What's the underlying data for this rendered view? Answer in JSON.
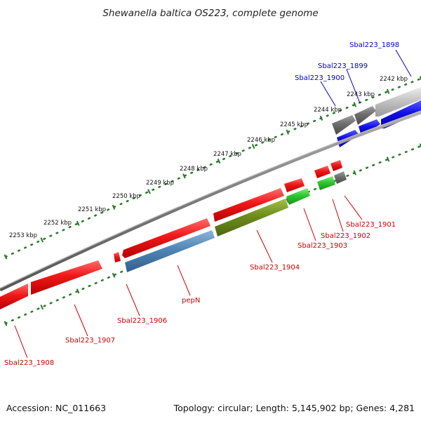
{
  "title": "Shewanella baltica OS223, complete genome",
  "footer": {
    "accession": "Accession: NC_011663",
    "topology": "Topology: circular; Length: 5,145,902 bp; Genes: 4,281"
  },
  "colors": {
    "red_gene": "#e8141b",
    "blue_gene": "#1414e0",
    "steel_gene": "#4f86b8",
    "olive_gene": "#6f8d1c",
    "green_gene": "#2ec82e",
    "dark_gene": "#707070",
    "light_gene": "#c4c4c4",
    "tick": "#2a7a2a",
    "label_red": "#cc0000",
    "label_blue": "#0000cc"
  },
  "scale_labels": [
    "2242 kbp",
    "2243 kbp",
    "2244 kbp",
    "2245 kbp",
    "2246 kbp",
    "2247 kbp",
    "2248 kbp",
    "2249 kbp",
    "2250 kbp",
    "2251 kbp",
    "2252 kbp",
    "2253 kbp"
  ],
  "genes": [
    {
      "label": "Sbal223_1898",
      "strand": "plus"
    },
    {
      "label": "Sbal223_1899",
      "strand": "plus"
    },
    {
      "label": "Sbal223_1900",
      "strand": "plus"
    },
    {
      "label": "Sbal223_1901",
      "strand": "minus"
    },
    {
      "label": "Sbal223_1902",
      "strand": "minus"
    },
    {
      "label": "Sbal223_1903",
      "strand": "minus"
    },
    {
      "label": "Sbal223_1904",
      "strand": "minus"
    },
    {
      "label": "pepN",
      "strand": "minus"
    },
    {
      "label": "Sbal223_1906",
      "strand": "minus"
    },
    {
      "label": "Sbal223_1907",
      "strand": "minus"
    },
    {
      "label": "Sbal223_1908",
      "strand": "minus"
    }
  ]
}
